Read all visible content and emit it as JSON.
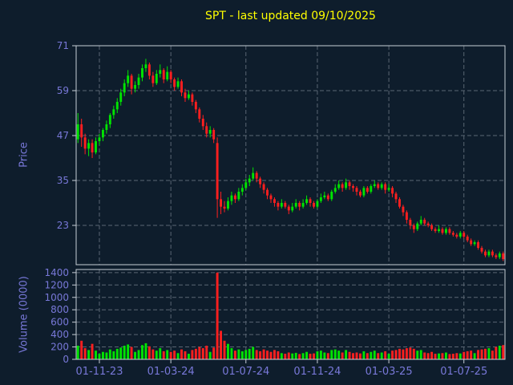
{
  "title": "SPT - last updated 09/10/2025",
  "colors": {
    "background": "#0e1d2c",
    "title": "#ffff00",
    "axis_label": "#7878d8",
    "tick_label": "#7878d8",
    "grid": "#5a6673",
    "spine": "#c7ced6",
    "up": "#00e400",
    "down": "#ff1f1f"
  },
  "chart_data": {
    "type": "candlestick+volume",
    "title": "SPT - last updated 09/10/2025",
    "price_axis": {
      "label": "Price",
      "ticks": [
        71,
        59,
        47,
        35,
        23
      ],
      "ylim": [
        12.5,
        71
      ]
    },
    "volume_axis": {
      "label": "Volume (0000)",
      "ticks": [
        1400,
        1200,
        1000,
        800,
        600,
        400,
        200,
        0
      ],
      "ylim": [
        0,
        1450
      ]
    },
    "x_ticks": [
      {
        "index": 6,
        "label": "01-11-23"
      },
      {
        "index": 26,
        "label": "01-03-24"
      },
      {
        "index": 47,
        "label": "01-07-24"
      },
      {
        "index": 67,
        "label": "01-11-24"
      },
      {
        "index": 87,
        "label": "01-03-25"
      },
      {
        "index": 108,
        "label": "01-07-25"
      }
    ],
    "candles_format": [
      "open",
      "high",
      "low",
      "close",
      "volume"
    ],
    "candles": [
      [
        46,
        53,
        45,
        50,
        220
      ],
      [
        50,
        51.5,
        44,
        46.5,
        300
      ],
      [
        46.5,
        47.5,
        42,
        43.5,
        180
      ],
      [
        43.5,
        46,
        41.5,
        45,
        150
      ],
      [
        45,
        46,
        41,
        42.5,
        250
      ],
      [
        42.5,
        46.5,
        42,
        45.5,
        140
      ],
      [
        45.5,
        47.5,
        44.5,
        46.5,
        90
      ],
      [
        46.5,
        49,
        45.5,
        48.5,
        120
      ],
      [
        48.5,
        51,
        47.5,
        50,
        110
      ],
      [
        50,
        53,
        49,
        52.5,
        160
      ],
      [
        52.5,
        55,
        51.5,
        54,
        130
      ],
      [
        54,
        57,
        53,
        56,
        170
      ],
      [
        56,
        59.5,
        55,
        58.5,
        190
      ],
      [
        58.5,
        62,
        57.5,
        61,
        220
      ],
      [
        61,
        64.5,
        60,
        63,
        240
      ],
      [
        63,
        63.5,
        58,
        59.5,
        200
      ],
      [
        59.5,
        61.5,
        58.5,
        60.5,
        120
      ],
      [
        60.5,
        63.5,
        59.5,
        62.5,
        150
      ],
      [
        62.5,
        66,
        61.5,
        65,
        230
      ],
      [
        65,
        67.5,
        64,
        66,
        260
      ],
      [
        66,
        66.5,
        62,
        63,
        210
      ],
      [
        63,
        64,
        60,
        61,
        160
      ],
      [
        61,
        64.5,
        60.5,
        63.5,
        140
      ],
      [
        63.5,
        66,
        62.5,
        64.5,
        180
      ],
      [
        64.5,
        65,
        61,
        62,
        130
      ],
      [
        62,
        65.5,
        61.5,
        64,
        150
      ],
      [
        64,
        64.5,
        61,
        62,
        120
      ],
      [
        62,
        62.5,
        59,
        60,
        140
      ],
      [
        60,
        62.5,
        59.5,
        61.5,
        100
      ],
      [
        61.5,
        62,
        57.5,
        58.5,
        160
      ],
      [
        58.5,
        59.5,
        56,
        57,
        130
      ],
      [
        57,
        59,
        56.5,
        58,
        90
      ],
      [
        58,
        58.5,
        55,
        56,
        150
      ],
      [
        56,
        56.5,
        53,
        54,
        170
      ],
      [
        54,
        54.5,
        50.5,
        51.5,
        200
      ],
      [
        51.5,
        52.5,
        48.5,
        49.5,
        180
      ],
      [
        49.5,
        50.5,
        46.5,
        47.5,
        220
      ],
      [
        47.5,
        49.5,
        46.5,
        48.5,
        120
      ],
      [
        48.5,
        49,
        45,
        46,
        190
      ],
      [
        45,
        46.5,
        25,
        30,
        1400
      ],
      [
        30,
        32,
        26,
        28,
        460
      ],
      [
        28,
        29.5,
        26.5,
        27.5,
        300
      ],
      [
        27.5,
        30.5,
        27,
        29.5,
        250
      ],
      [
        29.5,
        32,
        28.5,
        31,
        180
      ],
      [
        31,
        31.5,
        29,
        30,
        140
      ],
      [
        30,
        33,
        29.5,
        32,
        160
      ],
      [
        32,
        34,
        31,
        33,
        130
      ],
      [
        33,
        35.5,
        32.5,
        34.5,
        150
      ],
      [
        34.5,
        36.5,
        33.5,
        35.5,
        170
      ],
      [
        35.5,
        38.5,
        35,
        37,
        200
      ],
      [
        37,
        37.5,
        34.5,
        35.5,
        150
      ],
      [
        35.5,
        36,
        33,
        34,
        130
      ],
      [
        34,
        34.5,
        31.5,
        32.5,
        160
      ],
      [
        32.5,
        33,
        30,
        31,
        140
      ],
      [
        31,
        31.5,
        29,
        30,
        120
      ],
      [
        30,
        30.5,
        28,
        29,
        150
      ],
      [
        29,
        29.5,
        27,
        28,
        130
      ],
      [
        28,
        30,
        27.5,
        29,
        100
      ],
      [
        29,
        29.5,
        27.5,
        28,
        90
      ],
      [
        28,
        28.5,
        26,
        27,
        110
      ],
      [
        27,
        29,
        26.5,
        28,
        95
      ],
      [
        28,
        30,
        27.5,
        29,
        105
      ],
      [
        29,
        29.5,
        27,
        28,
        85
      ],
      [
        28,
        30,
        27.5,
        29,
        100
      ],
      [
        29,
        31,
        28.5,
        30,
        120
      ],
      [
        30,
        30.5,
        28,
        29,
        90
      ],
      [
        29,
        29.5,
        27.5,
        28,
        95
      ],
      [
        28,
        30,
        27.5,
        29.5,
        130
      ],
      [
        29.5,
        31.5,
        29,
        30.5,
        140
      ],
      [
        30.5,
        32,
        30,
        31,
        110
      ],
      [
        31,
        31.5,
        29.5,
        30,
        100
      ],
      [
        30,
        32.5,
        29.5,
        32,
        150
      ],
      [
        32,
        34,
        31.5,
        33,
        160
      ],
      [
        33,
        35,
        32.5,
        34,
        140
      ],
      [
        34,
        34.5,
        32,
        33,
        110
      ],
      [
        33,
        35.5,
        32.5,
        34.5,
        150
      ],
      [
        34.5,
        35,
        32.5,
        33.5,
        120
      ],
      [
        33.5,
        34,
        32,
        33,
        100
      ],
      [
        33,
        33.5,
        31,
        32,
        110
      ],
      [
        32,
        32.5,
        30.5,
        31,
        95
      ],
      [
        31,
        33.5,
        30.5,
        33,
        130
      ],
      [
        33,
        33.5,
        31.5,
        32,
        100
      ],
      [
        32,
        34,
        31.5,
        33.5,
        120
      ],
      [
        33.5,
        35,
        33,
        34,
        140
      ],
      [
        34,
        34.5,
        32.5,
        33,
        100
      ],
      [
        33,
        34.5,
        32.5,
        34,
        110
      ],
      [
        34,
        34.5,
        31.5,
        32.5,
        130
      ],
      [
        32.5,
        34,
        32,
        33,
        90
      ],
      [
        33,
        33.5,
        30.5,
        31.5,
        140
      ],
      [
        31.5,
        32,
        29,
        30,
        150
      ],
      [
        30,
        30.5,
        27.5,
        28,
        170
      ],
      [
        28,
        28.5,
        25.5,
        26.5,
        160
      ],
      [
        26.5,
        27,
        23.5,
        24.5,
        180
      ],
      [
        24.5,
        25,
        22,
        23,
        190
      ],
      [
        23,
        23.5,
        21,
        22,
        170
      ],
      [
        22,
        24,
        21.5,
        23.5,
        140
      ],
      [
        23.5,
        25.5,
        23,
        24.5,
        150
      ],
      [
        24.5,
        25,
        23,
        23.5,
        110
      ],
      [
        23.5,
        24,
        22.5,
        23,
        100
      ],
      [
        23,
        23.5,
        21.5,
        22,
        120
      ],
      [
        22,
        22.5,
        21,
        21.5,
        90
      ],
      [
        21.5,
        23,
        21,
        22,
        95
      ],
      [
        22,
        22.5,
        20.5,
        21,
        100
      ],
      [
        21,
        22.5,
        20.5,
        22,
        110
      ],
      [
        22,
        22.5,
        20.5,
        21,
        85
      ],
      [
        21,
        21.5,
        20,
        20.5,
        90
      ],
      [
        20.5,
        21,
        19.5,
        20,
        100
      ],
      [
        20,
        21.5,
        19.5,
        21,
        95
      ],
      [
        21,
        21.5,
        19.5,
        20,
        120
      ],
      [
        20,
        20.5,
        18.5,
        19,
        130
      ],
      [
        19,
        19.5,
        17.5,
        18,
        140
      ],
      [
        18,
        19,
        17.5,
        18.5,
        100
      ],
      [
        18.5,
        19,
        16.5,
        17,
        150
      ],
      [
        17,
        17.5,
        15.5,
        16,
        160
      ],
      [
        16,
        16.5,
        14.5,
        15,
        170
      ],
      [
        15,
        16.5,
        14.5,
        16,
        180
      ],
      [
        16,
        16.5,
        14.5,
        15,
        140
      ],
      [
        15,
        15.5,
        14,
        14.5,
        200
      ],
      [
        14.5,
        16,
        14,
        15.5,
        220
      ],
      [
        15.5,
        16,
        13.5,
        14,
        230
      ]
    ]
  }
}
